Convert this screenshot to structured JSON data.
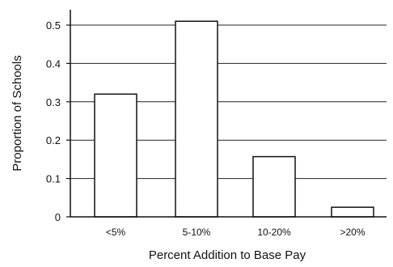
{
  "chart_data": {
    "type": "bar",
    "categories": [
      "<5%",
      "5-10%",
      "10-20%",
      ">20%"
    ],
    "values": [
      0.32,
      0.51,
      0.157,
      0.025
    ],
    "title": "",
    "xlabel": "Percent Addition to Base Pay",
    "ylabel": "Proportion of Schools",
    "ylim": [
      0,
      0.55
    ],
    "yticks": [
      0,
      0.1,
      0.2,
      0.3,
      0.4,
      0.5
    ],
    "ytick_labels": [
      "0",
      "0.1",
      "0.2",
      "0.3",
      "0.4",
      "0.5"
    ],
    "grid": "horizontal",
    "legend": "none"
  }
}
